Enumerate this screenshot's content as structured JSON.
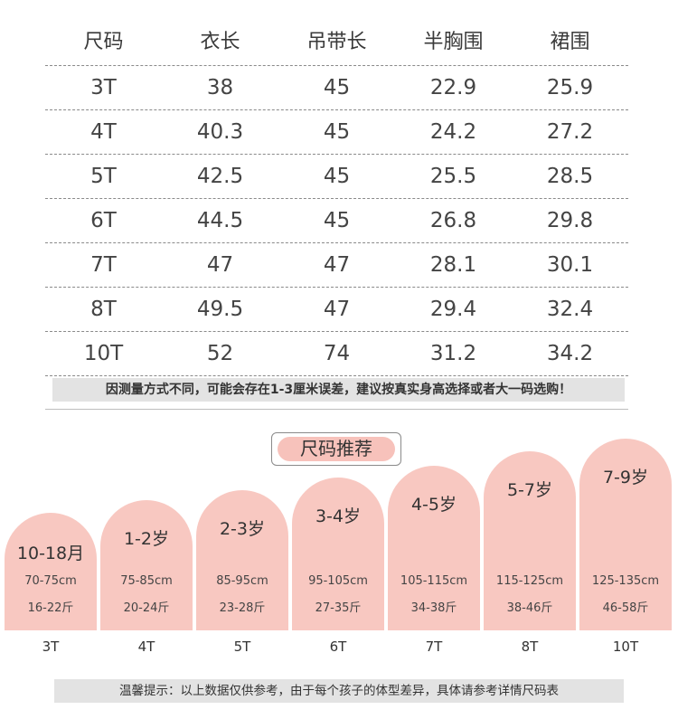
{
  "table": {
    "headers": [
      "尺码",
      "衣长",
      "吊带长",
      "半胸围",
      "裙围"
    ],
    "rows": [
      [
        "3T",
        "38",
        "45",
        "22.9",
        "25.9"
      ],
      [
        "4T",
        "40.3",
        "45",
        "24.2",
        "27.2"
      ],
      [
        "5T",
        "42.5",
        "45",
        "25.5",
        "28.5"
      ],
      [
        "6T",
        "44.5",
        "45",
        "26.8",
        "29.8"
      ],
      [
        "7T",
        "47",
        "47",
        "28.1",
        "30.1"
      ],
      [
        "8T",
        "49.5",
        "47",
        "29.4",
        "32.4"
      ],
      [
        "10T",
        "52",
        "74",
        "31.2",
        "34.2"
      ]
    ]
  },
  "notice_top": "因测量方式不同，可能会存在1-3厘米误差，建议按真实身高选择或者大一码选购！",
  "recommend_title": "尺码推荐",
  "recommendations": [
    {
      "age": "10-18月",
      "height": "70-75cm",
      "weight": "16-22斤",
      "size": "3T"
    },
    {
      "age": "1-2岁",
      "height": "75-85cm",
      "weight": "20-24斤",
      "size": "4T"
    },
    {
      "age": "2-3岁",
      "height": "85-95cm",
      "weight": "23-28斤",
      "size": "5T"
    },
    {
      "age": "3-4岁",
      "height": "95-105cm",
      "weight": "27-35斤",
      "size": "6T"
    },
    {
      "age": "4-5岁",
      "height": "105-115cm",
      "weight": "34-38斤",
      "size": "7T"
    },
    {
      "age": "5-7岁",
      "height": "115-125cm",
      "weight": "38-46斤",
      "size": "8T"
    },
    {
      "age": "7-9岁",
      "height": "125-135cm",
      "weight": "46-58斤",
      "size": "10T"
    }
  ],
  "notice_bottom": "温馨提示：以上数据仅供参考，由于每个孩子的体型差异，具体请参考详情尺码表",
  "colors": {
    "arch": "#f8c8c1",
    "notice_bg": "#e3e3e3"
  }
}
